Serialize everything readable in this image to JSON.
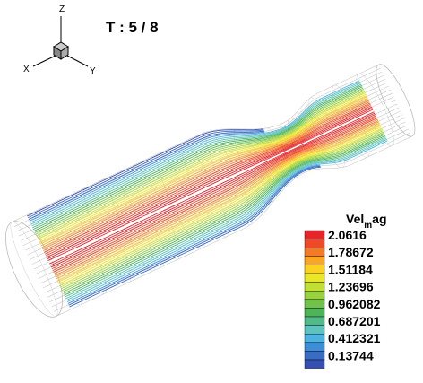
{
  "triad": {
    "z": "Z",
    "x": "X",
    "y": "Y"
  },
  "title": "T : 5 / 8",
  "legend": {
    "title": [
      "Vel",
      "m",
      "ag"
    ],
    "levels": [
      "2.0616",
      "1.78672",
      "1.51184",
      "1.23696",
      "0.962082",
      "0.687201",
      "0.412321",
      "0.13744"
    ],
    "colors": [
      "#e4262b",
      "#ee4a2a",
      "#f57a28",
      "#f9a526",
      "#fbd124",
      "#e9e72a",
      "#c3df34",
      "#9ad13e",
      "#71c24a",
      "#4fb457",
      "#52b98a",
      "#5cc3bf",
      "#4cb4e1",
      "#3c8fd7",
      "#3a6cc4",
      "#3650b2"
    ]
  }
}
